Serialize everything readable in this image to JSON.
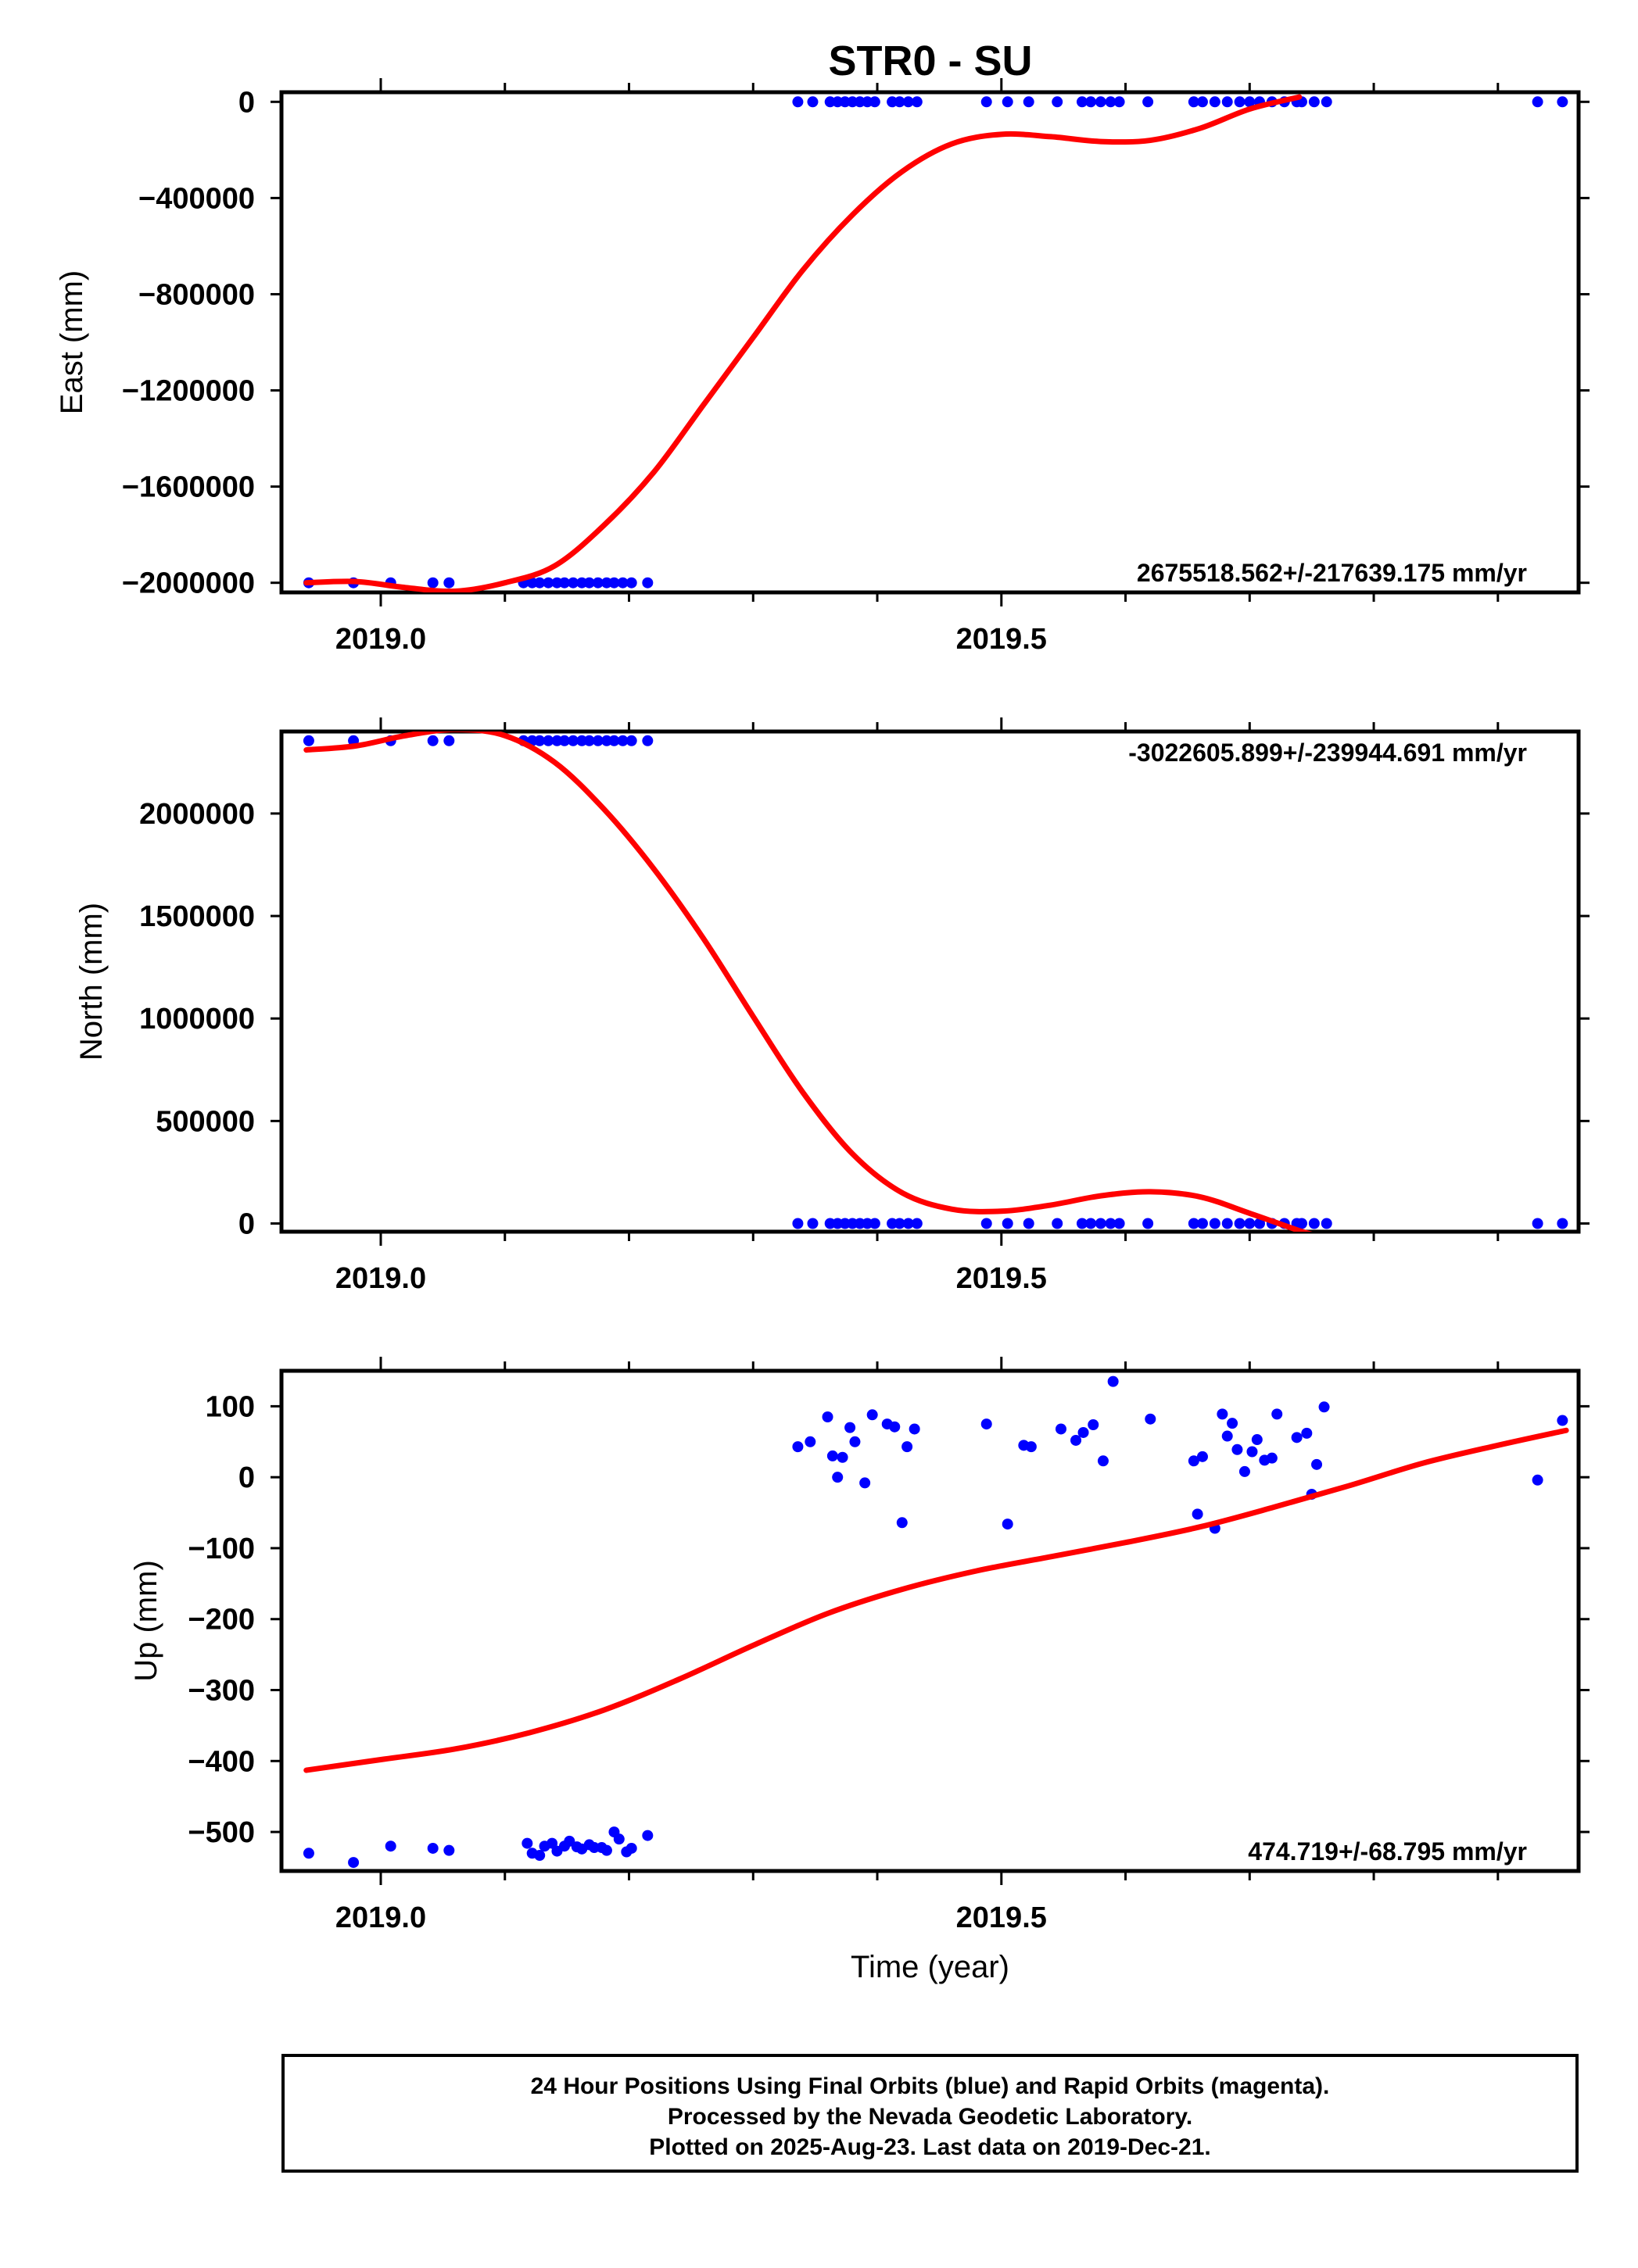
{
  "title": "STR0 - SU",
  "chart_data": [
    {
      "type": "scatter",
      "id": "east",
      "ylabel": "East (mm)",
      "xlabel": "",
      "xlim": [
        2018.92,
        2019.965
      ],
      "ylim": [
        -2040000,
        40000
      ],
      "yticks": [
        0,
        -400000,
        -800000,
        -1200000,
        -1600000,
        -2000000
      ],
      "ytick_labels": [
        "0",
        "−400000",
        "−800000",
        "−1200000",
        "−1600000",
        "−2000000"
      ],
      "xticks": [
        2019.0,
        2019.5
      ],
      "xtick_labels": [
        "2019.0",
        "2019.5"
      ],
      "rate_label": "2675518.562+/-217639.175 mm/yr",
      "rate_position": "bottom-right",
      "points": {
        "x": [
          2018.942,
          2018.978,
          2019.008,
          2019.042,
          2019.055,
          2019.115,
          2019.122,
          2019.128,
          2019.135,
          2019.142,
          2019.148,
          2019.155,
          2019.162,
          2019.168,
          2019.175,
          2019.182,
          2019.188,
          2019.195,
          2019.202,
          2019.215,
          2019.336,
          2019.348,
          2019.362,
          2019.368,
          2019.374,
          2019.38,
          2019.386,
          2019.392,
          2019.398,
          2019.412,
          2019.418,
          2019.425,
          2019.432,
          2019.488,
          2019.505,
          2019.522,
          2019.545,
          2019.565,
          2019.572,
          2019.58,
          2019.588,
          2019.595,
          2019.618,
          2019.655,
          2019.662,
          2019.672,
          2019.682,
          2019.692,
          2019.7,
          2019.708,
          2019.718,
          2019.728,
          2019.738,
          2019.742,
          2019.752,
          2019.762,
          2019.932,
          2019.952
        ],
        "y": [
          -2000000,
          -2000000,
          -2000000,
          -2000000,
          -2000000,
          -2000000,
          -2000000,
          -2000000,
          -2000000,
          -2000000,
          -2000000,
          -2000000,
          -2000000,
          -2000000,
          -2000000,
          -2000000,
          -2000000,
          -2000000,
          -2000000,
          -2000000,
          0,
          0,
          0,
          0,
          0,
          0,
          0,
          0,
          0,
          0,
          0,
          0,
          0,
          0,
          0,
          0,
          0,
          0,
          0,
          0,
          0,
          0,
          0,
          0,
          0,
          0,
          0,
          0,
          0,
          0,
          0,
          0,
          0,
          0,
          0,
          0,
          0,
          0
        ]
      },
      "fit": {
        "x": [
          2018.94,
          2018.98,
          2019.02,
          2019.06,
          2019.1,
          2019.14,
          2019.18,
          2019.22,
          2019.26,
          2019.3,
          2019.34,
          2019.38,
          2019.42,
          2019.46,
          2019.5,
          2019.54,
          2019.58,
          2019.62,
          2019.66,
          2019.7,
          2019.74
        ],
        "y": [
          -2000000,
          -1995000,
          -2020000,
          -2035000,
          -2000000,
          -1930000,
          -1760000,
          -1540000,
          -1260000,
          -980000,
          -700000,
          -470000,
          -290000,
          -175000,
          -135000,
          -145000,
          -165000,
          -160000,
          -110000,
          -30000,
          20000
        ]
      },
      "point_color": "#0000ff",
      "fit_color": "#ff0000"
    },
    {
      "type": "scatter",
      "id": "north",
      "ylabel": "North (mm)",
      "xlabel": "",
      "xlim": [
        2018.92,
        2019.965
      ],
      "ylim": [
        -40000,
        2400000
      ],
      "yticks": [
        0,
        500000,
        1000000,
        1500000,
        2000000
      ],
      "ytick_labels": [
        "0",
        "500000",
        "1000000",
        "1500000",
        "2000000"
      ],
      "xticks": [
        2019.0,
        2019.5
      ],
      "xtick_labels": [
        "2019.0",
        "2019.5"
      ],
      "rate_label": "-3022605.899+/-239944.691 mm/yr",
      "rate_position": "top-right",
      "points": {
        "x": [
          2018.942,
          2018.978,
          2019.008,
          2019.042,
          2019.055,
          2019.115,
          2019.122,
          2019.128,
          2019.135,
          2019.142,
          2019.148,
          2019.155,
          2019.162,
          2019.168,
          2019.175,
          2019.182,
          2019.188,
          2019.195,
          2019.202,
          2019.215,
          2019.336,
          2019.348,
          2019.362,
          2019.368,
          2019.374,
          2019.38,
          2019.386,
          2019.392,
          2019.398,
          2019.412,
          2019.418,
          2019.425,
          2019.432,
          2019.488,
          2019.505,
          2019.522,
          2019.545,
          2019.565,
          2019.572,
          2019.58,
          2019.588,
          2019.595,
          2019.618,
          2019.655,
          2019.662,
          2019.672,
          2019.682,
          2019.692,
          2019.7,
          2019.708,
          2019.718,
          2019.728,
          2019.738,
          2019.742,
          2019.752,
          2019.762,
          2019.932,
          2019.952
        ],
        "y": [
          2355000,
          2355000,
          2355000,
          2355000,
          2355000,
          2355000,
          2355000,
          2355000,
          2355000,
          2355000,
          2355000,
          2355000,
          2355000,
          2355000,
          2355000,
          2355000,
          2355000,
          2355000,
          2355000,
          2355000,
          0,
          0,
          0,
          0,
          0,
          0,
          0,
          0,
          0,
          0,
          0,
          0,
          0,
          0,
          0,
          0,
          0,
          0,
          0,
          0,
          0,
          0,
          0,
          0,
          0,
          0,
          0,
          0,
          0,
          0,
          0,
          0,
          0,
          0,
          0,
          0,
          0,
          0
        ]
      },
      "fit": {
        "x": [
          2018.94,
          2018.98,
          2019.02,
          2019.06,
          2019.1,
          2019.14,
          2019.18,
          2019.22,
          2019.26,
          2019.3,
          2019.34,
          2019.38,
          2019.42,
          2019.46,
          2019.5,
          2019.54,
          2019.58,
          2019.62,
          2019.66,
          2019.7,
          2019.74,
          2019.755
        ],
        "y": [
          2310000,
          2330000,
          2380000,
          2410000,
          2380000,
          2250000,
          2020000,
          1730000,
          1390000,
          1010000,
          640000,
          340000,
          150000,
          70000,
          60000,
          90000,
          135000,
          155000,
          130000,
          50000,
          -35000,
          -60000
        ]
      },
      "point_color": "#0000ff",
      "fit_color": "#ff0000"
    },
    {
      "type": "scatter",
      "id": "up",
      "ylabel": "Up (mm)",
      "xlabel": "Time (year)",
      "xlim": [
        2018.92,
        2019.965
      ],
      "ylim": [
        -555,
        150
      ],
      "yticks": [
        100,
        0,
        -100,
        -200,
        -300,
        -400,
        -500
      ],
      "ytick_labels": [
        "100",
        "0",
        "−100",
        "−200",
        "−300",
        "−400",
        "−500"
      ],
      "xticks": [
        2019.0,
        2019.5
      ],
      "xtick_labels": [
        "2019.0",
        "2019.5"
      ],
      "rate_label": "474.719+/-68.795 mm/yr",
      "rate_position": "bottom-right",
      "points": {
        "x": [
          2018.942,
          2018.978,
          2019.008,
          2019.042,
          2019.055,
          2019.118,
          2019.122,
          2019.128,
          2019.132,
          2019.138,
          2019.142,
          2019.148,
          2019.152,
          2019.158,
          2019.162,
          2019.168,
          2019.172,
          2019.178,
          2019.182,
          2019.188,
          2019.192,
          2019.198,
          2019.202,
          2019.215,
          2019.336,
          2019.346,
          2019.36,
          2019.364,
          2019.368,
          2019.372,
          2019.378,
          2019.382,
          2019.39,
          2019.396,
          2019.408,
          2019.414,
          2019.42,
          2019.424,
          2019.43,
          2019.488,
          2019.505,
          2019.518,
          2019.524,
          2019.548,
          2019.56,
          2019.566,
          2019.574,
          2019.582,
          2019.59,
          2019.62,
          2019.655,
          2019.658,
          2019.662,
          2019.672,
          2019.678,
          2019.682,
          2019.686,
          2019.69,
          2019.696,
          2019.702,
          2019.706,
          2019.712,
          2019.718,
          2019.722,
          2019.738,
          2019.746,
          2019.75,
          2019.754,
          2019.76,
          2019.932,
          2019.952
        ],
        "y": [
          -530,
          -543,
          -520,
          -523,
          -526,
          -516,
          -530,
          -533,
          -520,
          -516,
          -527,
          -520,
          -513,
          -521,
          -524,
          -518,
          -522,
          -522,
          -526,
          -500,
          -510,
          -528,
          -523,
          -505,
          43,
          50,
          85,
          30,
          0,
          28,
          70,
          50,
          -8,
          88,
          75,
          71,
          -64,
          43,
          68,
          75,
          -66,
          45,
          43,
          68,
          52,
          63,
          74,
          23,
          135,
          82,
          23,
          -52,
          29,
          -72,
          89,
          58,
          76,
          39,
          8,
          36,
          53,
          24,
          27,
          89,
          56,
          62,
          -24,
          18,
          99,
          -4,
          80
        ]
      },
      "fit": {
        "x": [
          2018.94,
          2019.0,
          2019.06,
          2019.12,
          2019.18,
          2019.24,
          2019.3,
          2019.36,
          2019.42,
          2019.48,
          2019.54,
          2019.6,
          2019.66,
          2019.72,
          2019.78,
          2019.84,
          2019.9,
          2019.955
        ],
        "y": [
          -413,
          -398,
          -383,
          -360,
          -328,
          -285,
          -237,
          -192,
          -158,
          -132,
          -112,
          -92,
          -70,
          -42,
          -12,
          20,
          45,
          66
        ]
      },
      "point_color": "#0000ff",
      "fit_color": "#ff0000"
    }
  ],
  "footer": {
    "line1": "24 Hour Positions Using Final Orbits (blue) and Rapid Orbits (magenta).",
    "line2": "Processed by the Nevada Geodetic Laboratory.",
    "line3": "Plotted on 2025-Aug-23. Last data on 2019-Dec-21."
  }
}
